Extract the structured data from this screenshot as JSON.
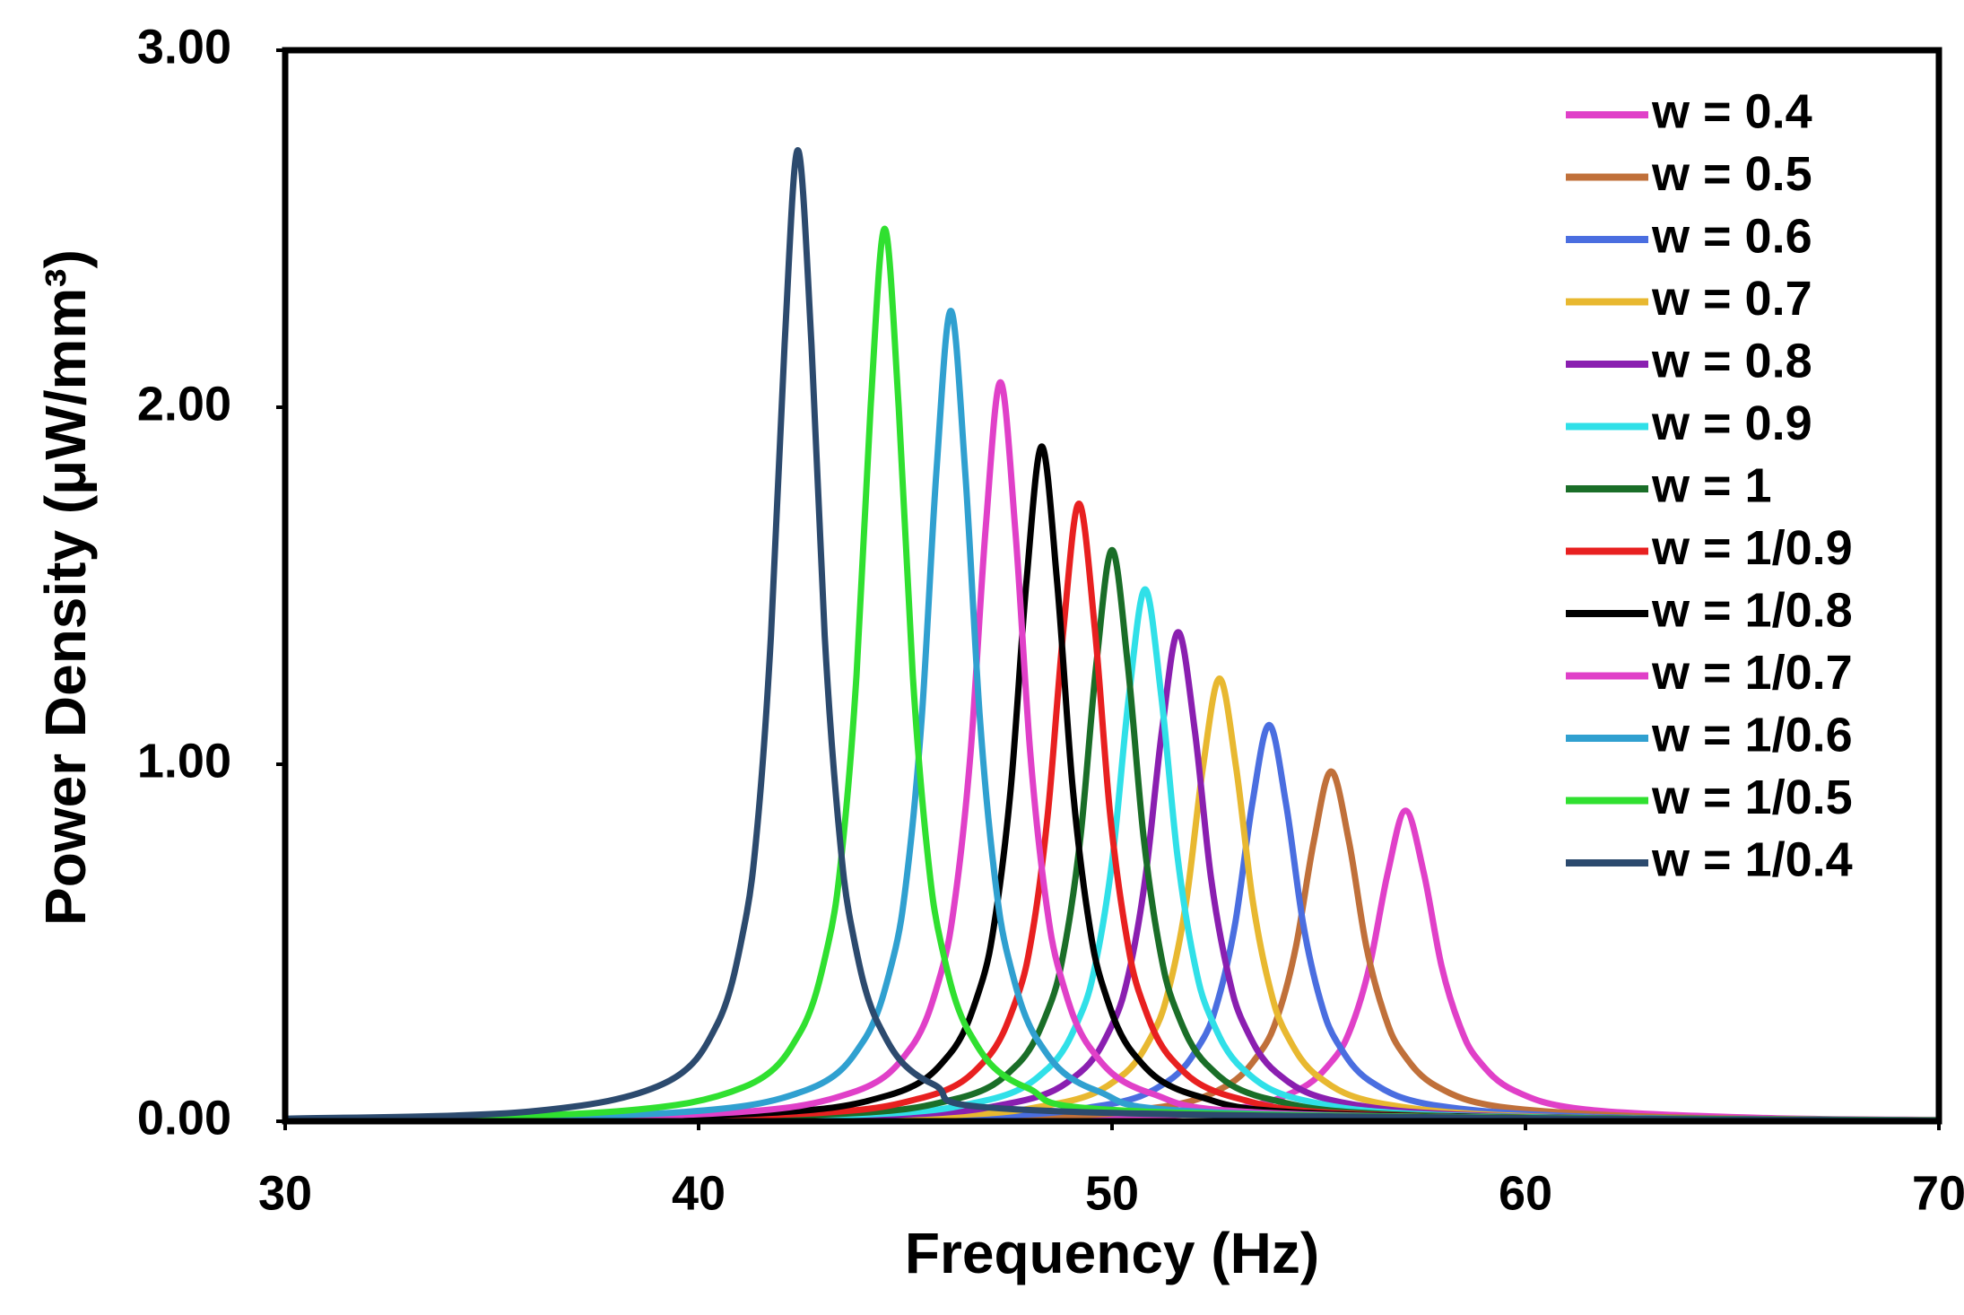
{
  "chart_data": {
    "type": "line",
    "x_label": "Frequency (Hz)",
    "y_label": "Power Density (μW/mm³)",
    "xlim": [
      30,
      70
    ],
    "xticks": [
      30,
      40,
      50,
      60,
      70
    ],
    "ylim": [
      0,
      3
    ],
    "yticks": [
      {
        "value": 0,
        "label": "0.00"
      },
      {
        "value": 1,
        "label": "1.00"
      },
      {
        "value": 2,
        "label": "2.00"
      },
      {
        "value": 3,
        "label": "3.00"
      }
    ],
    "legend": "upper right",
    "series": [
      {
        "name": "w = 0.4",
        "color": "#e040c8",
        "x": [
          30,
          48.4,
          52.75,
          54.49,
          55.36,
          55.8,
          56.23,
          56.67,
          57.1,
          57.54,
          57.97,
          58.41,
          58.84,
          59.71,
          61.45,
          65.8,
          70
        ],
        "values": [
          0.001,
          0.009,
          0.033,
          0.087,
          0.174,
          0.268,
          0.435,
          0.696,
          0.87,
          0.696,
          0.435,
          0.268,
          0.174,
          0.087,
          0.033,
          0.009,
          0.004
        ]
      },
      {
        "name": "w = 0.5",
        "color": "#c0703a",
        "x": [
          30,
          46.8,
          51.05,
          52.75,
          53.6,
          54.03,
          54.45,
          54.88,
          55.3,
          55.73,
          56.15,
          56.58,
          57.0,
          57.85,
          59.55,
          63.8,
          70
        ],
        "values": [
          0.001,
          0.01,
          0.038,
          0.098,
          0.196,
          0.302,
          0.49,
          0.784,
          0.98,
          0.784,
          0.49,
          0.302,
          0.196,
          0.098,
          0.038,
          0.01,
          0.003
        ]
      },
      {
        "name": "w = 0.6",
        "color": "#4a6ee0",
        "x": [
          30,
          45.6,
          49.7,
          51.34,
          52.16,
          52.57,
          52.98,
          53.39,
          53.8,
          54.21,
          54.62,
          55.03,
          55.44,
          56.26,
          57.9,
          62.0,
          70
        ],
        "values": [
          0.001,
          0.011,
          0.043,
          0.111,
          0.222,
          0.342,
          0.555,
          0.888,
          1.11,
          0.888,
          0.555,
          0.342,
          0.222,
          0.111,
          0.043,
          0.011,
          0.003
        ]
      },
      {
        "name": "w = 0.7",
        "color": "#e8b830",
        "x": [
          30,
          44.6,
          48.6,
          50.2,
          51.0,
          51.4,
          51.8,
          52.2,
          52.6,
          53.0,
          53.4,
          53.8,
          54.2,
          55.0,
          56.6,
          60.6,
          70
        ],
        "values": [
          0.002,
          0.012,
          0.048,
          0.124,
          0.248,
          0.382,
          0.62,
          0.992,
          1.24,
          0.992,
          0.62,
          0.382,
          0.248,
          0.124,
          0.048,
          0.012,
          0.003
        ]
      },
      {
        "name": "w = 0.8",
        "color": "#8a1fb0",
        "x": [
          30,
          43.7,
          47.65,
          49.23,
          50.02,
          50.42,
          50.81,
          51.21,
          51.6,
          52.0,
          52.39,
          52.79,
          53.18,
          53.97,
          55.55,
          59.5,
          70
        ],
        "values": [
          0.002,
          0.014,
          0.053,
          0.137,
          0.274,
          0.422,
          0.685,
          1.096,
          1.37,
          1.096,
          0.685,
          0.422,
          0.274,
          0.137,
          0.053,
          0.014,
          0.003
        ]
      },
      {
        "name": "w = 0.9",
        "color": "#30e0e8",
        "x": [
          30,
          43.0,
          46.9,
          48.46,
          49.24,
          49.63,
          50.02,
          50.41,
          50.8,
          51.19,
          51.58,
          51.97,
          52.36,
          53.14,
          54.7,
          58.6,
          70
        ],
        "values": [
          0.002,
          0.015,
          0.057,
          0.149,
          0.298,
          0.458,
          0.745,
          1.192,
          1.49,
          1.192,
          0.745,
          0.458,
          0.298,
          0.149,
          0.057,
          0.015,
          0.002
        ]
      },
      {
        "name": "w = 1",
        "color": "#1a6e28",
        "x": [
          30,
          42.4,
          46.2,
          47.72,
          48.48,
          48.86,
          49.24,
          49.62,
          50.0,
          50.38,
          50.76,
          51.14,
          51.52,
          52.28,
          53.8,
          57.6,
          70
        ],
        "values": [
          0.002,
          0.016,
          0.062,
          0.16,
          0.32,
          0.492,
          0.8,
          1.28,
          1.6,
          1.28,
          0.8,
          0.492,
          0.32,
          0.16,
          0.062,
          0.016,
          0.002
        ]
      },
      {
        "name": "w = 1/0.9",
        "color": "#e82020",
        "x": [
          30,
          41.7,
          45.45,
          46.95,
          47.7,
          48.08,
          48.45,
          48.83,
          49.2,
          49.58,
          49.95,
          50.33,
          50.7,
          51.45,
          52.95,
          56.7,
          70
        ],
        "values": [
          0.003,
          0.017,
          0.067,
          0.173,
          0.346,
          0.532,
          0.865,
          1.384,
          1.73,
          1.384,
          0.865,
          0.532,
          0.346,
          0.173,
          0.067,
          0.017,
          0.002
        ]
      },
      {
        "name": "w = 1/0.8",
        "color": "#000000",
        "x": [
          30,
          40.9,
          44.6,
          46.08,
          46.82,
          47.19,
          47.56,
          47.93,
          48.3,
          48.67,
          49.04,
          49.41,
          49.78,
          50.52,
          52.0,
          55.7,
          70
        ],
        "values": [
          0.003,
          0.019,
          0.073,
          0.189,
          0.378,
          0.582,
          0.945,
          1.512,
          1.89,
          1.512,
          0.945,
          0.582,
          0.378,
          0.189,
          0.073,
          0.019,
          0.002
        ]
      },
      {
        "name": "w = 1/0.7",
        "color": "#e040c8",
        "x": [
          30,
          40.1,
          43.7,
          45.14,
          45.86,
          46.22,
          46.58,
          46.94,
          47.3,
          47.66,
          48.02,
          48.38,
          48.74,
          49.46,
          50.9,
          54.5,
          70
        ],
        "values": [
          0.004,
          0.02,
          0.08,
          0.207,
          0.414,
          0.637,
          1.035,
          1.656,
          2.07,
          1.656,
          1.035,
          0.637,
          0.414,
          0.207,
          0.08,
          0.02,
          0.002
        ]
      },
      {
        "name": "w = 1/0.6",
        "color": "#30a0d0",
        "x": [
          30,
          39.1,
          42.6,
          44.0,
          44.7,
          45.05,
          45.4,
          45.75,
          46.1,
          46.45,
          46.8,
          47.15,
          47.5,
          48.2,
          49.6,
          53.1,
          70
        ],
        "values": [
          0.004,
          0.022,
          0.087,
          0.227,
          0.454,
          0.698,
          1.135,
          1.816,
          2.27,
          1.816,
          1.135,
          0.698,
          0.454,
          0.227,
          0.087,
          0.022,
          0.002
        ]
      },
      {
        "name": "w = 1/0.5",
        "color": "#30e030",
        "x": [
          30,
          37.7,
          41.1,
          42.46,
          43.14,
          43.48,
          43.82,
          44.16,
          44.5,
          44.84,
          45.18,
          45.52,
          45.86,
          46.54,
          47.9,
          51.3,
          70
        ],
        "values": [
          0.005,
          0.025,
          0.096,
          0.25,
          0.5,
          0.769,
          1.25,
          2.0,
          2.5,
          2.0,
          1.25,
          0.769,
          0.5,
          0.25,
          0.096,
          0.025,
          0.002
        ]
      },
      {
        "name": "w = 1/0.4",
        "color": "#2c4a6e",
        "x": [
          30,
          35.9,
          39.15,
          40.45,
          41.1,
          41.43,
          41.75,
          42.08,
          42.4,
          42.73,
          43.05,
          43.38,
          43.7,
          44.35,
          45.65,
          48.9,
          70
        ],
        "values": [
          0.007,
          0.027,
          0.105,
          0.272,
          0.544,
          0.837,
          1.36,
          2.176,
          2.72,
          2.176,
          1.36,
          0.837,
          0.544,
          0.272,
          0.105,
          0.027,
          0.001
        ]
      }
    ]
  }
}
